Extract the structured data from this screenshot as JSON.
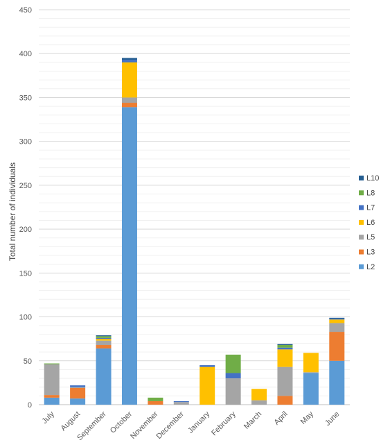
{
  "chart_data": {
    "type": "bar",
    "stacked": true,
    "title": "",
    "xlabel": "",
    "ylabel": "Total number of individuals",
    "ylim": [
      0,
      450
    ],
    "yticks": [
      0,
      50,
      100,
      150,
      200,
      250,
      300,
      350,
      400,
      450
    ],
    "grid": true,
    "legend_position": "right",
    "categories": [
      "July",
      "August",
      "September",
      "October",
      "November",
      "December",
      "January",
      "February",
      "March",
      "April",
      "May",
      "June"
    ],
    "series": [
      {
        "name": "L2",
        "color": "#5B9BD5",
        "values": [
          8,
          7,
          64,
          339,
          0,
          0,
          0,
          0,
          0,
          0,
          36,
          50
        ]
      },
      {
        "name": "L3",
        "color": "#ED7D31",
        "values": [
          3,
          12,
          4,
          5,
          4,
          0,
          0,
          0,
          0,
          10,
          0,
          33
        ]
      },
      {
        "name": "L5",
        "color": "#A5A5A5",
        "values": [
          35,
          1,
          5,
          6,
          0,
          3,
          0,
          30,
          5,
          33,
          1,
          10
        ]
      },
      {
        "name": "L6",
        "color": "#FFC000",
        "values": [
          0,
          0,
          2,
          40,
          0,
          0,
          43,
          0,
          13,
          20,
          22,
          4
        ]
      },
      {
        "name": "L7",
        "color": "#4472C4",
        "values": [
          0,
          2,
          1,
          3,
          0,
          1,
          2,
          6,
          0,
          2,
          0,
          1
        ]
      },
      {
        "name": "L8",
        "color": "#70AD47",
        "values": [
          1,
          0,
          2,
          0,
          4,
          0,
          0,
          21,
          0,
          3,
          0,
          0
        ]
      },
      {
        "name": "L10",
        "color": "#255E91",
        "values": [
          0,
          0,
          1,
          2,
          0,
          0,
          0,
          0,
          0,
          1,
          0,
          1
        ]
      }
    ]
  }
}
